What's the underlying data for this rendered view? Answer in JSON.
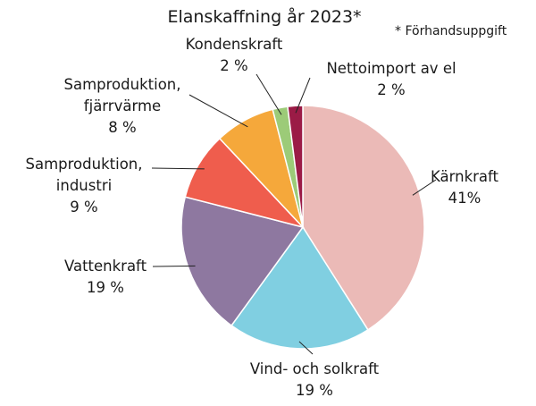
{
  "chart_data": {
    "type": "pie",
    "title": "Elanskaffning år 2023*",
    "note": "* Förhandsuppgift",
    "categories": [
      "Kärnkraft",
      "Vind- och solkraft",
      "Vattenkraft",
      "Samproduktion,\nindustri",
      "Samproduktion,\nfjärrvärme",
      "Kondenskraft",
      "Nettoimport av el"
    ],
    "values": [
      41,
      19,
      19,
      9,
      8,
      2,
      2
    ],
    "value_labels": [
      "41%",
      "19 %",
      "19 %",
      "9 %",
      "8 %",
      "2 %",
      "2 %"
    ],
    "colors": [
      "#ebbab7",
      "#80cfe1",
      "#8e78a0",
      "#ef5d4d",
      "#f5a83b",
      "#9ccb78",
      "#9b1b46"
    ]
  }
}
